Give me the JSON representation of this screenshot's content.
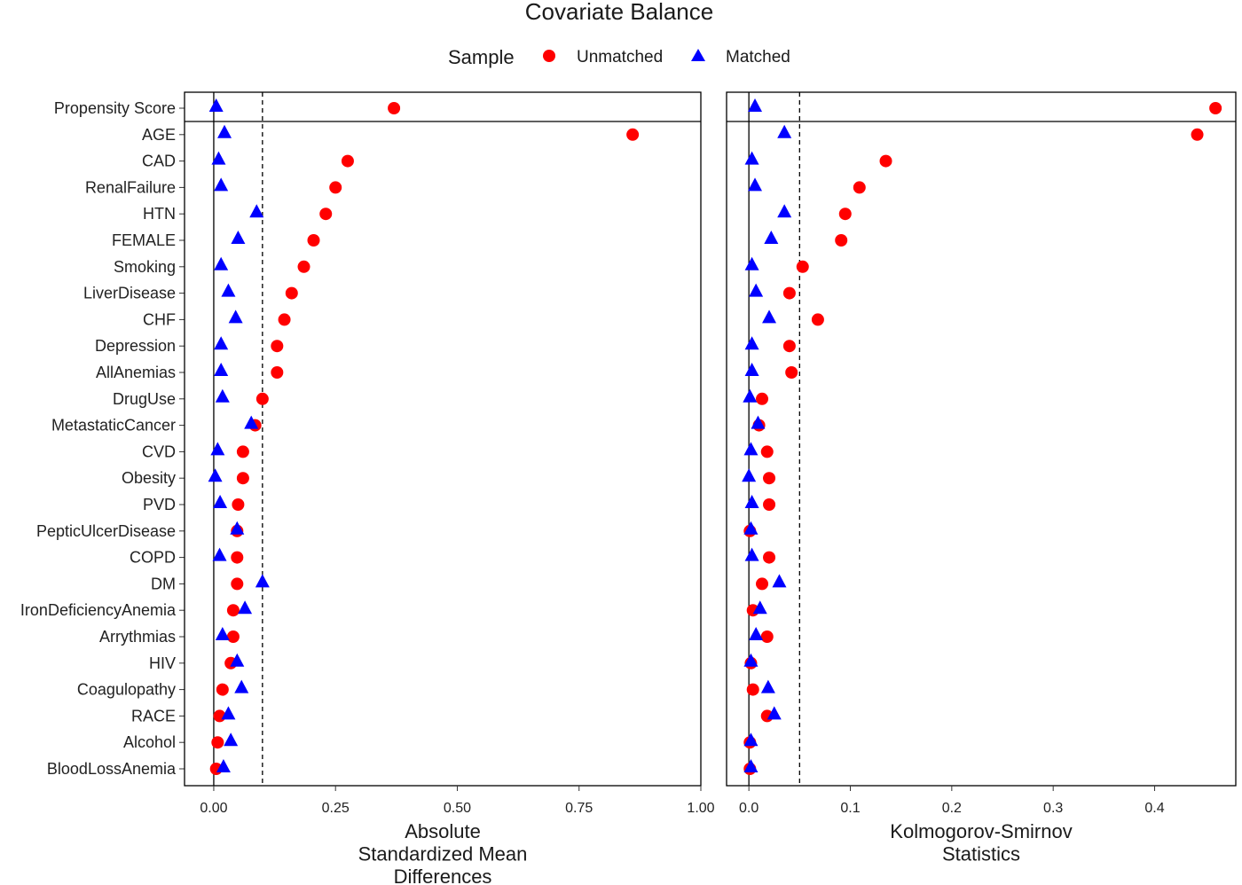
{
  "chart_data": {
    "type": "scatter",
    "title": "Covariate Balance",
    "legend": {
      "title": "Sample",
      "placement": "top",
      "entries": [
        {
          "name": "Unmatched",
          "color": "#ff0000",
          "shape": "circle"
        },
        {
          "name": "Matched",
          "color": "#0000ff",
          "shape": "triangle"
        }
      ]
    },
    "categories": [
      "Propensity Score",
      "AGE",
      "CAD",
      "RenalFailure",
      "HTN",
      "FEMALE",
      "Smoking",
      "LiverDisease",
      "CHF",
      "Depression",
      "AllAnemias",
      "DrugUse",
      "MetastaticCancer",
      "CVD",
      "Obesity",
      "PVD",
      "PepticUlcerDisease",
      "COPD",
      "DM",
      "IronDeficiencyAnemia",
      "Arrythmias",
      "HIV",
      "Coagulopathy",
      "RACE",
      "Alcohol",
      "BloodLossAnemia"
    ],
    "panels": [
      {
        "xlabel": [
          "Absolute",
          "Standardized Mean",
          "Differences"
        ],
        "xlim": [
          -0.06,
          1.0
        ],
        "ticks": [
          0,
          0.25,
          0.5,
          0.75,
          1.0
        ],
        "tick_labels": [
          "0.00",
          "0.25",
          "0.50",
          "0.75",
          "1.00"
        ],
        "threshold": 0.1,
        "series": [
          {
            "name": "Unmatched",
            "values": [
              0.37,
              0.86,
              0.275,
              0.25,
              0.23,
              0.205,
              0.185,
              0.16,
              0.145,
              0.13,
              0.13,
              0.1,
              0.085,
              0.06,
              0.06,
              0.05,
              0.048,
              0.048,
              0.048,
              0.04,
              0.04,
              0.035,
              0.018,
              0.012,
              0.008,
              0.005
            ]
          },
          {
            "name": "Matched",
            "values": [
              0.005,
              0.022,
              0.01,
              0.015,
              0.088,
              0.05,
              0.015,
              0.03,
              0.045,
              0.015,
              0.015,
              0.018,
              0.077,
              0.008,
              0.003,
              0.013,
              0.048,
              0.012,
              0.1,
              0.064,
              0.018,
              0.048,
              0.057,
              0.03,
              0.035,
              0.02
            ]
          }
        ]
      },
      {
        "xlabel": [
          "Kolmogorov-Smirnov",
          "Statistics"
        ],
        "xlim": [
          -0.022,
          0.48
        ],
        "ticks": [
          0,
          0.1,
          0.2,
          0.3,
          0.4
        ],
        "tick_labels": [
          "0.0",
          "0.1",
          "0.2",
          "0.3",
          "0.4"
        ],
        "threshold": 0.05,
        "series": [
          {
            "name": "Unmatched",
            "values": [
              0.46,
              0.442,
              0.135,
              0.109,
              0.095,
              0.091,
              0.053,
              0.04,
              0.068,
              0.04,
              0.042,
              0.013,
              0.01,
              0.018,
              0.02,
              0.02,
              0.001,
              0.02,
              0.013,
              0.004,
              0.018,
              0.002,
              0.004,
              0.018,
              0.001,
              0.001
            ]
          },
          {
            "name": "Matched",
            "values": [
              0.006,
              0.035,
              0.003,
              0.006,
              0.035,
              0.022,
              0.003,
              0.007,
              0.02,
              0.003,
              0.003,
              0.001,
              0.009,
              0.002,
              0.0,
              0.003,
              0.002,
              0.003,
              0.03,
              0.011,
              0.007,
              0.002,
              0.019,
              0.025,
              0.002,
              0.002
            ]
          }
        ]
      }
    ]
  }
}
